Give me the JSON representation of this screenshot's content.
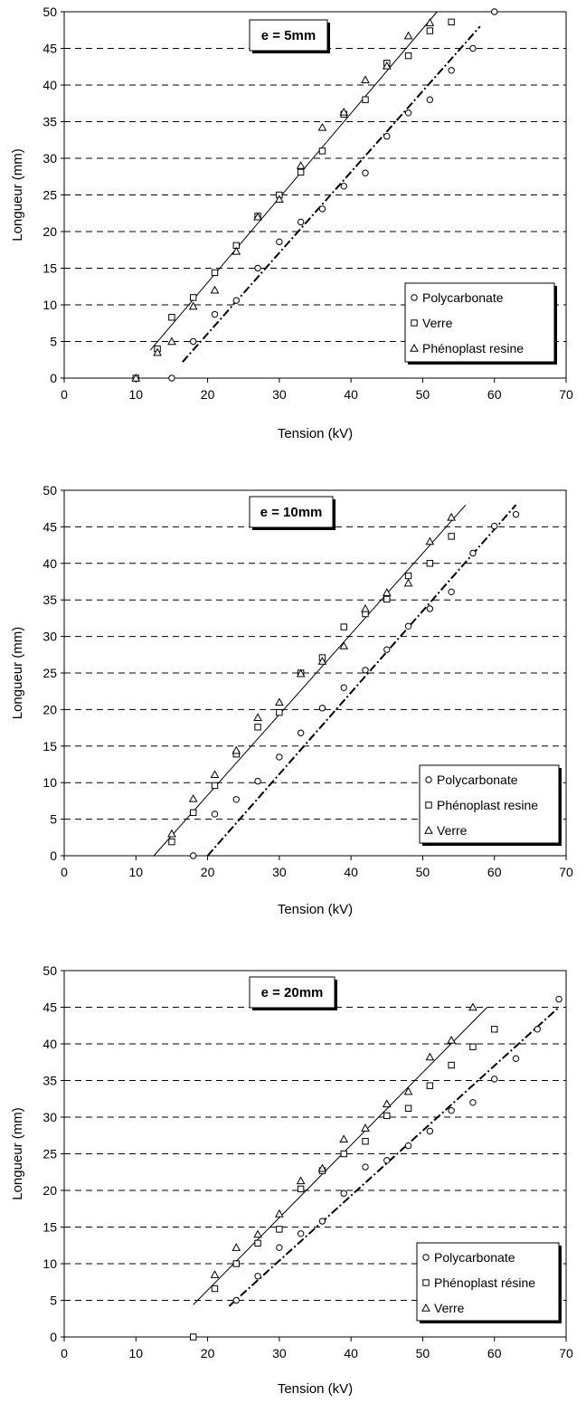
{
  "chart_data": [
    {
      "type": "scatter",
      "title": "e = 5mm",
      "xlabel": "Tension (kV)",
      "ylabel": "Longueur (mm)",
      "xlim": [
        0,
        70
      ],
      "ylim": [
        0,
        50
      ],
      "xticks": [
        "0",
        "10",
        "20",
        "30",
        "40",
        "50",
        "60",
        "70"
      ],
      "yticks": [
        "0",
        "5",
        "10",
        "15",
        "20",
        "25",
        "30",
        "35",
        "40",
        "45",
        "50"
      ],
      "grid": "horizontal dashed",
      "legend_position": "bottom-right",
      "series": [
        {
          "name": "Polycarbonate",
          "marker": "circle",
          "x": [
            15,
            18,
            21,
            24,
            27,
            30,
            33,
            36,
            39,
            42,
            45,
            48,
            51,
            54,
            57,
            60
          ],
          "y": [
            0,
            5,
            8.7,
            10.6,
            15,
            18.6,
            21.3,
            23.1,
            26.2,
            28,
            33,
            36.2,
            38,
            42,
            45,
            50
          ]
        },
        {
          "name": "Verre",
          "marker": "square",
          "x": [
            10,
            13,
            15,
            18,
            21,
            24,
            27,
            30,
            33,
            36,
            39,
            42,
            45,
            48,
            51,
            54
          ],
          "y": [
            0,
            4,
            8.3,
            11,
            14.4,
            18.1,
            22.1,
            25,
            28.1,
            31,
            36,
            38,
            43,
            44,
            47.4,
            48.6
          ]
        },
        {
          "name": "Phénoplast resine",
          "marker": "triangle",
          "x": [
            10,
            13,
            15,
            18,
            21,
            24,
            27,
            30,
            33,
            36,
            39,
            42,
            45,
            48,
            51
          ],
          "y": [
            0,
            3.5,
            5,
            9.8,
            12,
            17.3,
            22,
            24.4,
            29,
            34.2,
            36.3,
            40.7,
            42.6,
            46.7,
            48.5
          ]
        }
      ],
      "trendlines": [
        {
          "style": "solid",
          "x": [
            12,
            52
          ],
          "y": [
            3.8,
            50
          ]
        },
        {
          "style": "dash-dot",
          "x": [
            16.5,
            58
          ],
          "y": [
            2.2,
            48
          ]
        }
      ]
    },
    {
      "type": "scatter",
      "title": "e = 10mm",
      "xlabel": "Tension (kV)",
      "ylabel": "Longueur (mm)",
      "xlim": [
        0,
        70
      ],
      "ylim": [
        0,
        50
      ],
      "xticks": [
        "0",
        "10",
        "20",
        "30",
        "40",
        "50",
        "60",
        "70"
      ],
      "yticks": [
        "0",
        "5",
        "10",
        "15",
        "20",
        "25",
        "30",
        "35",
        "40",
        "45",
        "50"
      ],
      "grid": "horizontal dashed",
      "legend_position": "bottom-right",
      "series": [
        {
          "name": "Polycarbonate",
          "marker": "circle",
          "x": [
            18,
            21,
            24,
            27,
            30,
            33,
            36,
            39,
            42,
            45,
            48,
            51,
            54,
            57,
            60,
            63
          ],
          "y": [
            0,
            5.7,
            7.7,
            10.2,
            13.5,
            16.8,
            20.2,
            23,
            25.4,
            28.2,
            31.4,
            33.8,
            36.1,
            41.4,
            45.1,
            46.7
          ]
        },
        {
          "name": "Phénoplast resine",
          "marker": "square",
          "x": [
            15,
            18,
            21,
            24,
            27,
            30,
            33,
            36,
            39,
            42,
            45,
            48,
            51,
            54
          ],
          "y": [
            1.9,
            5.9,
            9.6,
            13.9,
            17.6,
            19.6,
            25,
            27.1,
            31.3,
            33.1,
            35.1,
            38.3,
            40,
            43.7
          ]
        },
        {
          "name": "Verre",
          "marker": "triangle",
          "x": [
            15,
            18,
            21,
            24,
            27,
            30,
            33,
            36,
            39,
            42,
            45,
            48,
            51,
            54
          ],
          "y": [
            3,
            7.8,
            11.1,
            14.4,
            18.9,
            21,
            24.9,
            26.6,
            28.7,
            33.8,
            36,
            37.3,
            43,
            46.3
          ]
        }
      ],
      "trendlines": [
        {
          "style": "solid",
          "x": [
            12.5,
            56
          ],
          "y": [
            0,
            48
          ]
        },
        {
          "style": "dash-dot",
          "x": [
            20,
            63
          ],
          "y": [
            0,
            48
          ]
        }
      ]
    },
    {
      "type": "scatter",
      "title": "e = 20mm",
      "xlabel": "Tension (kV)",
      "ylabel": "Longueur (mm)",
      "xlim": [
        0,
        70
      ],
      "ylim": [
        0,
        50
      ],
      "xticks": [
        "0",
        "10",
        "20",
        "30",
        "40",
        "50",
        "60",
        "70"
      ],
      "yticks": [
        "0",
        "5",
        "10",
        "15",
        "20",
        "25",
        "30",
        "35",
        "40",
        "45",
        "50"
      ],
      "grid": "horizontal dashed",
      "legend_position": "bottom-right",
      "series": [
        {
          "name": "Polycarbonate",
          "marker": "circle",
          "x": [
            24,
            27,
            30,
            33,
            36,
            39,
            42,
            45,
            48,
            51,
            54,
            57,
            60,
            63,
            66,
            69
          ],
          "y": [
            5,
            8.3,
            12.2,
            14.1,
            15.8,
            19.6,
            23.2,
            24.1,
            26.1,
            28.1,
            30.9,
            32,
            35.2,
            38,
            42,
            46.1
          ]
        },
        {
          "name": "Phénoplast résine",
          "marker": "square",
          "x": [
            18,
            21,
            24,
            27,
            30,
            33,
            36,
            39,
            42,
            45,
            48,
            51,
            54,
            57,
            60
          ],
          "y": [
            0,
            6.6,
            10,
            12.8,
            14.7,
            20.2,
            22.7,
            25,
            26.7,
            30.2,
            31.2,
            34.3,
            37.1,
            39.6,
            42
          ]
        },
        {
          "name": "Verre",
          "marker": "triangle",
          "x": [
            21,
            24,
            27,
            30,
            33,
            36,
            39,
            42,
            45,
            48,
            51,
            54,
            57
          ],
          "y": [
            8.5,
            12.2,
            14,
            16.8,
            21.3,
            23,
            27,
            28.5,
            31.8,
            33.5,
            38.2,
            40.5,
            45
          ]
        }
      ],
      "trendlines": [
        {
          "style": "solid",
          "x": [
            18,
            59
          ],
          "y": [
            4.4,
            45
          ]
        },
        {
          "style": "dash-dot",
          "x": [
            23,
            69
          ],
          "y": [
            4.2,
            45
          ]
        }
      ]
    }
  ]
}
